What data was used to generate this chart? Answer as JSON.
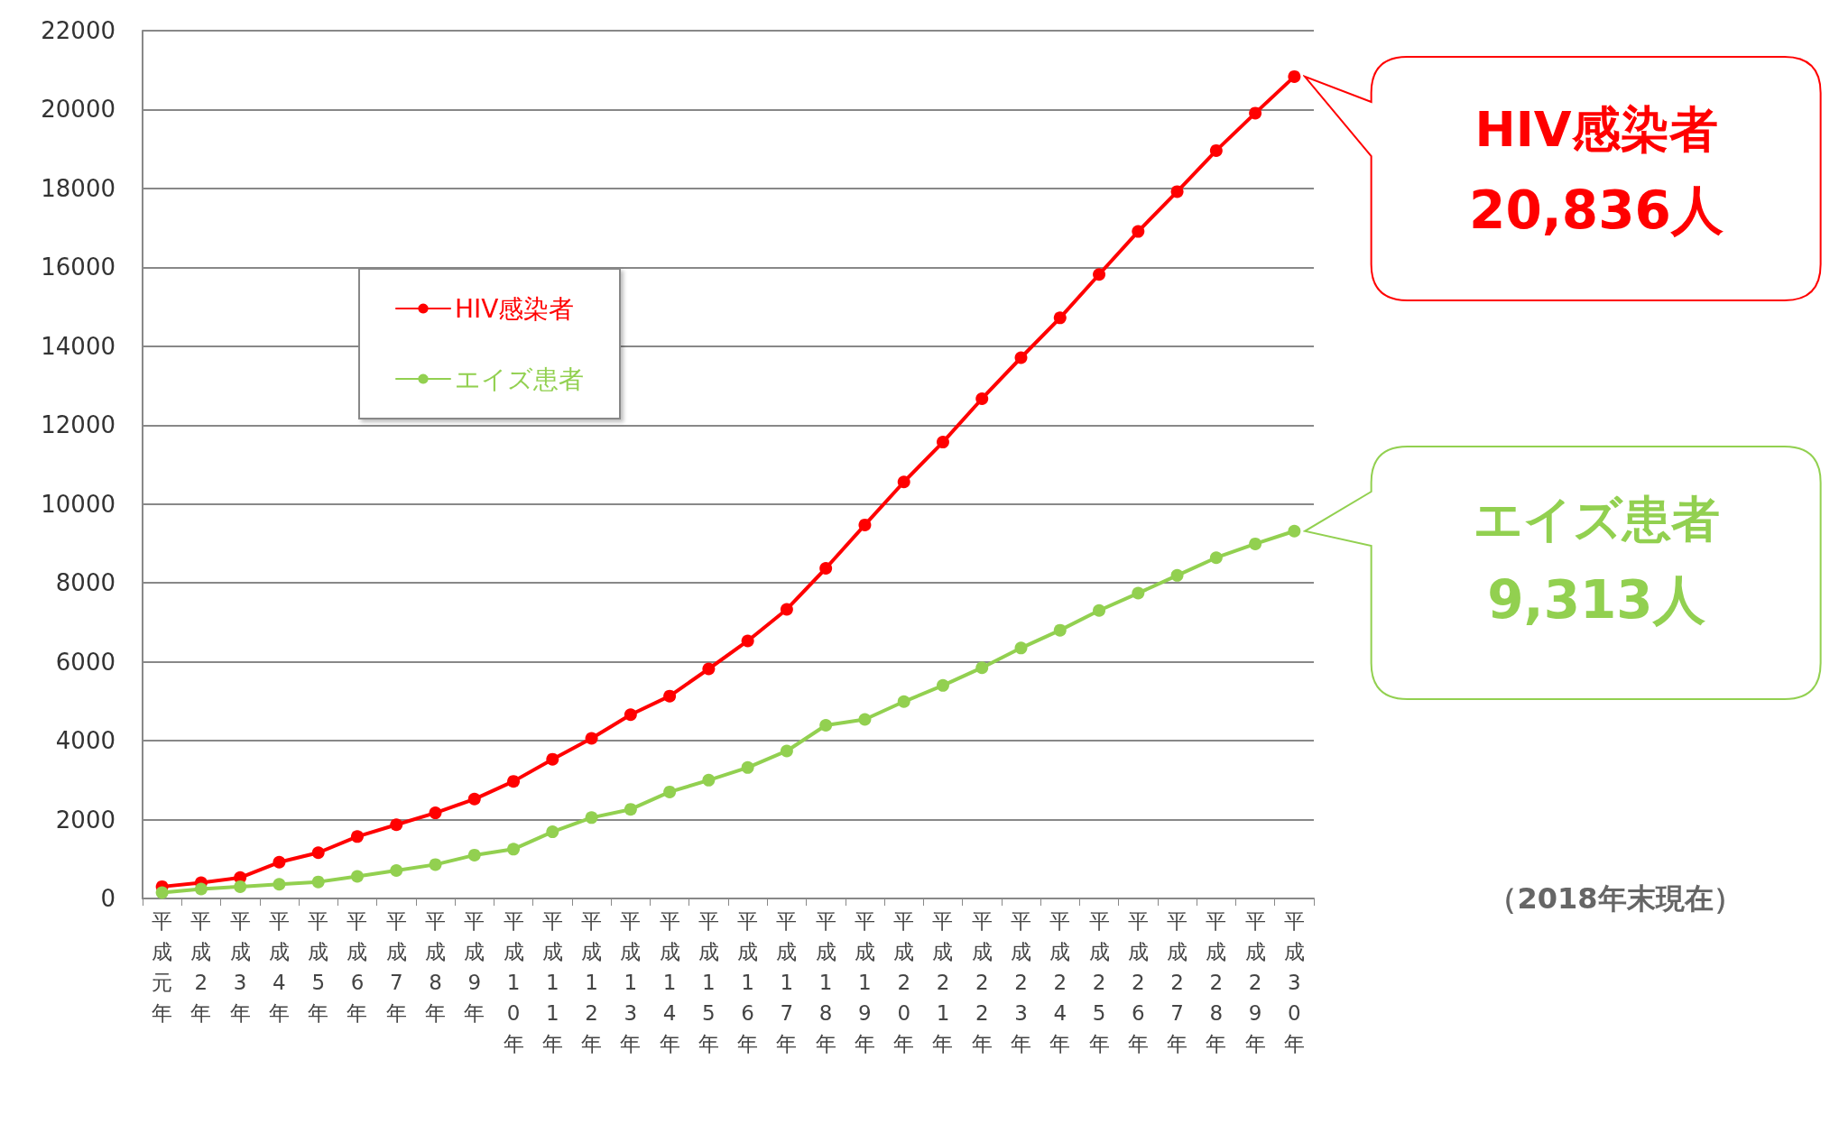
{
  "chart_data": {
    "type": "line",
    "categories": [
      "平成元年",
      "平成2年",
      "平成3年",
      "平成4年",
      "平成5年",
      "平成6年",
      "平成7年",
      "平成8年",
      "平成9年",
      "平成10年",
      "平成11年",
      "平成12年",
      "平成13年",
      "平成14年",
      "平成15年",
      "平成16年",
      "平成17年",
      "平成18年",
      "平成19年",
      "平成20年",
      "平成21年",
      "平成22年",
      "平成23年",
      "平成24年",
      "平成25年",
      "平成26年",
      "平成27年",
      "平成28年",
      "平成29年",
      "平成30年"
    ],
    "series": [
      {
        "name": "HIV感染者",
        "color": "#ff0000",
        "values": [
          300,
          400,
          530,
          920,
          1160,
          1570,
          1870,
          2170,
          2520,
          2970,
          3530,
          4060,
          4660,
          5130,
          5820,
          6530,
          7330,
          8370,
          9470,
          10560,
          11570,
          12670,
          13710,
          14720,
          15820,
          16910,
          17920,
          18960,
          19910,
          20836
        ]
      },
      {
        "name": "エイズ患者",
        "color": "#92d050",
        "values": [
          150,
          240,
          300,
          360,
          420,
          560,
          710,
          860,
          1100,
          1250,
          1690,
          2050,
          2260,
          2700,
          3000,
          3320,
          3740,
          4390,
          4540,
          4990,
          5400,
          5850,
          6350,
          6800,
          7300,
          7740,
          8190,
          8640,
          8990,
          9313
        ]
      }
    ],
    "ylim": [
      0,
      22000
    ],
    "yticks": [
      0,
      2000,
      4000,
      6000,
      8000,
      10000,
      12000,
      14000,
      16000,
      18000,
      20000,
      22000
    ],
    "grid": "y",
    "legend": "top left",
    "marker": "circle",
    "line_style": "solid",
    "annotations": [
      "HIV感染者",
      "20,836人",
      "エイズ患者",
      "9,313人",
      "（2018年末現在）"
    ]
  }
}
